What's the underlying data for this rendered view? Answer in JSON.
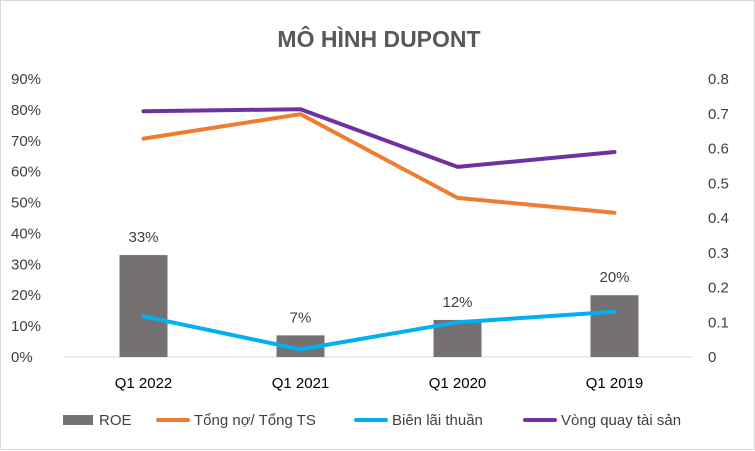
{
  "chart_data": {
    "type": "bar",
    "title": "MÔ HÌNH DUPONT",
    "categories": [
      "Q1 2022",
      "Q1 2021",
      "Q1 2020",
      "Q1 2019"
    ],
    "y_left": {
      "ylim": [
        0,
        0.9
      ],
      "ticks": [
        "0%",
        "10%",
        "20%",
        "30%",
        "40%",
        "50%",
        "60%",
        "70%",
        "80%",
        "90%"
      ]
    },
    "y_right": {
      "ylim": [
        0,
        0.8
      ],
      "ticks": [
        "0",
        "0.1",
        "0.2",
        "0.3",
        "0.4",
        "0.5",
        "0.6",
        "0.7",
        "0.8"
      ]
    },
    "series": [
      {
        "name": "ROE",
        "kind": "bar",
        "axis": "left",
        "values": [
          0.33,
          0.07,
          0.12,
          0.2
        ],
        "labels": [
          "33%",
          "7%",
          "12%",
          "20%"
        ],
        "color": "#767171"
      },
      {
        "name": "Tổng nợ/ Tổng TS",
        "kind": "line",
        "axis": "left",
        "values": [
          0.707,
          0.786,
          0.515,
          0.467
        ],
        "color": "#ED7D31"
      },
      {
        "name": "Biên lãi thuần",
        "kind": "line",
        "axis": "right",
        "values": [
          0.117,
          0.022,
          0.1,
          0.13
        ],
        "color": "#00B0F0"
      },
      {
        "name": "Vòng quay tài sản",
        "kind": "line",
        "axis": "right",
        "values": [
          0.707,
          0.713,
          0.547,
          0.59
        ],
        "color": "#7030A0"
      }
    ],
    "grid": false,
    "legend": "bottom"
  }
}
